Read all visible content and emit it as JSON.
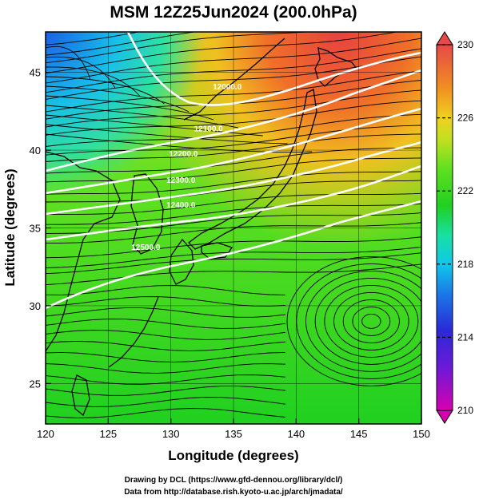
{
  "title": "MSM 12Z25Jun2024 (200.0hPa)",
  "xaxis": {
    "label": "Longitude (degrees)",
    "range": [
      120,
      150
    ],
    "ticks": [
      120,
      125,
      130,
      135,
      140,
      145,
      150
    ]
  },
  "yaxis": {
    "label": "Latitude  (degrees)",
    "range": [
      22.4,
      47.6
    ],
    "ticks": [
      25,
      30,
      35,
      40,
      45
    ]
  },
  "colorbar": {
    "min": 210,
    "max": 230,
    "tick_labels": [
      "230",
      "226",
      "222",
      "218",
      "214",
      "210"
    ],
    "ticks": [
      230,
      226,
      222,
      218,
      214,
      210
    ],
    "colors": [
      "#d800b0",
      "#8a1ad8",
      "#2a2ad8",
      "#1a7ae8",
      "#10c8e8",
      "#18e0a0",
      "#20d020",
      "#4ae020",
      "#a0e020",
      "#e8e020",
      "#f0a020",
      "#f07030",
      "#e84848"
    ]
  },
  "contours": [
    {
      "label": "12000.0",
      "lon": 134.5,
      "lat": 43.9
    },
    {
      "label": "12100.0",
      "lon": 133,
      "lat": 41.2
    },
    {
      "label": "12200.0",
      "lon": 131,
      "lat": 39.6
    },
    {
      "label": "12300.0",
      "lon": 130.8,
      "lat": 37.9
    },
    {
      "label": "12400.0",
      "lon": 130.8,
      "lat": 36.3
    },
    {
      "label": "12500.0",
      "lon": 128,
      "lat": 33.6
    }
  ],
  "credits": {
    "line1": "Drawing by DCL (https://www.gfd-dennou.org/library/dcl/)",
    "line2": "Data from http://database.rish.kyoto-u.ac.jp/arch/jmadata/"
  }
}
